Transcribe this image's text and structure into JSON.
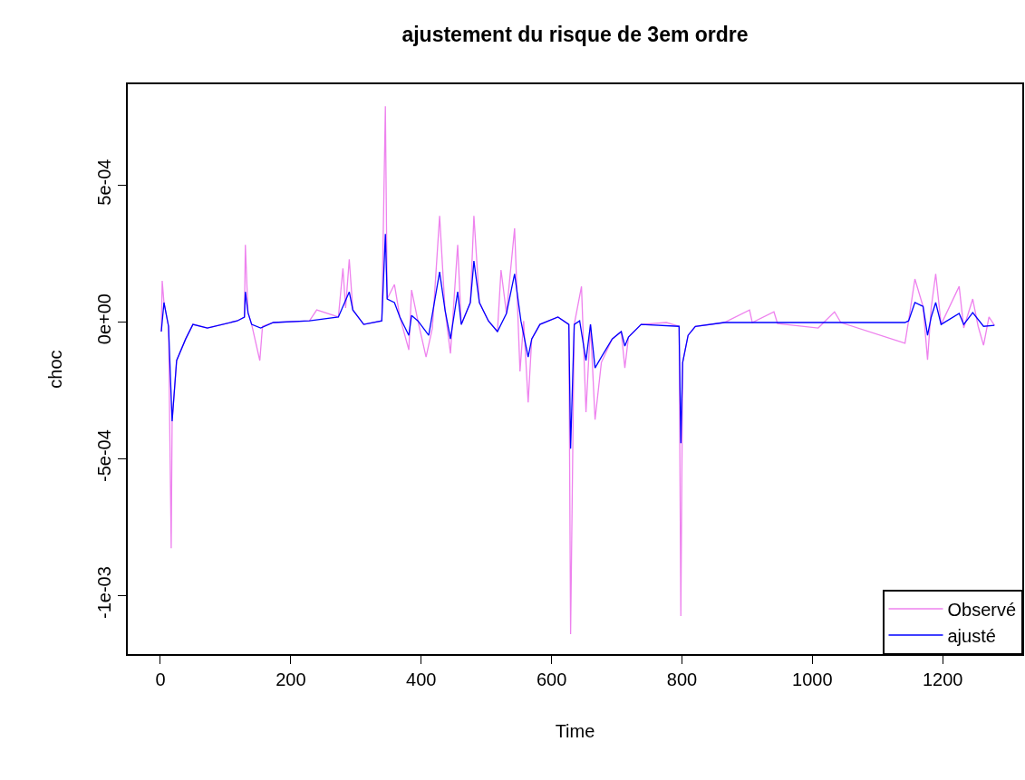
{
  "chart_data": {
    "type": "line",
    "title": "ajustement du risque de 3em ordre",
    "xlabel": "Time",
    "ylabel": "choc",
    "xlim": [
      -50,
      1322
    ],
    "ylim": [
      -0.001215,
      0.000868
    ],
    "xticks": [
      0,
      200,
      400,
      600,
      800,
      1000,
      1200
    ],
    "yticks": [
      {
        "value": 0.0005,
        "label": "5e-04"
      },
      {
        "value": 0,
        "label": "0e+00"
      },
      {
        "value": -0.0005,
        "label": "-5e-04"
      },
      {
        "value": -0.001,
        "label": "-1e-03"
      }
    ],
    "grid": false,
    "legend": "bottom right",
    "marker": "none",
    "line_style": "solid",
    "series": [
      {
        "name": "Observé",
        "color": "#ee82ee",
        "x": [
          1.4,
          2.8,
          5.5,
          12.5,
          16.6,
          18.0,
          24.9,
          38.8,
          49.9,
          72.1,
          117.8,
          128.9,
          130.3,
          134.4,
          140.0,
          152.5,
          156.6,
          173.3,
          228.7,
          239.8,
          273.0,
          280.0,
          284.1,
          289.7,
          295.2,
          311.9,
          339.6,
          345.1,
          347.9,
          359.0,
          367.3,
          381.1,
          385.3,
          395.0,
          407.5,
          417.2,
          428.3,
          436.6,
          444.9,
          456.0,
          461.5,
          475.4,
          480.9,
          489.3,
          503.1,
          517.0,
          522.5,
          530.8,
          543.3,
          551.6,
          557.2,
          564.1,
          569.6,
          582.1,
          609.8,
          626.5,
          629.2,
          634.8,
          645.9,
          652.8,
          659.7,
          666.7,
          676.4,
          693.0,
          706.9,
          712.4,
          718.0,
          737.4,
          776.2,
          795.6,
          798.3,
          801.1,
          809.4,
          820.5,
          864.9,
          903.7,
          907.8,
          941.1,
          946.6,
          1009.0,
          1034.0,
          1043.7,
          1142.1,
          1147.6,
          1157.3,
          1169.8,
          1176.7,
          1182.3,
          1189.2,
          1197.5,
          1225.2,
          1232.2,
          1246.0,
          1254.3,
          1262.6,
          1270.9,
          1279.3
        ],
        "values": [
          -3.6e-05,
          0.000149,
          7e-05,
          -1.7e-05,
          -0.000828,
          -0.000364,
          -0.000142,
          -6.3e-05,
          -1e-05,
          -2.3e-05,
          3e-06,
          1.7e-05,
          0.000281,
          3.3e-05,
          -1e-05,
          -0.000142,
          -1.7e-05,
          -3e-06,
          3e-06,
          4.3e-05,
          1.7e-05,
          0.000195,
          5e-05,
          0.000228,
          4.3e-05,
          -1e-05,
          3e-06,
          0.000788,
          8.3e-05,
          0.000136,
          1.7e-05,
          -0.000103,
          0.000116,
          3e-06,
          -0.000129,
          -2.3e-05,
          0.000387,
          4.3e-05,
          -0.000116,
          0.000281,
          -1e-05,
          7e-05,
          0.000387,
          7e-05,
          3e-06,
          -3.6e-05,
          0.000189,
          3e-05,
          0.000341,
          -0.000182,
          3e-06,
          -0.000295,
          -6.3e-05,
          -1e-05,
          1.7e-05,
          -1e-05,
          -0.001142,
          -1e-05,
          0.000129,
          -0.000331,
          -1e-05,
          -0.000358,
          -0.000149,
          -6.3e-05,
          -3.6e-05,
          -0.000169,
          -5.6e-05,
          -1e-05,
          -3e-06,
          -1.7e-05,
          -0.001076,
          -0.000149,
          -5e-05,
          -1.7e-05,
          -3e-06,
          4.3e-05,
          -3e-06,
          3.6e-05,
          -7e-06,
          -2.3e-05,
          3.6e-05,
          -3e-06,
          -7.9e-05,
          3e-06,
          0.000156,
          5.6e-05,
          -0.000139,
          5e-05,
          0.000175,
          -1e-05,
          0.000129,
          -2.3e-05,
          8.3e-05,
          -1.7e-05,
          -8.6e-05,
          1.7e-05,
          -1.3e-05
        ]
      },
      {
        "name": "ajusté",
        "color": "#0000ff",
        "x": [
          1.4,
          5.5,
          12.5,
          18.0,
          24.9,
          38.8,
          49.9,
          72.1,
          117.8,
          128.9,
          130.3,
          134.4,
          140.0,
          153.8,
          173.3,
          228.7,
          273.0,
          289.7,
          295.2,
          311.9,
          339.6,
          345.1,
          347.9,
          359.0,
          367.3,
          381.1,
          385.3,
          395.0,
          411.6,
          428.3,
          436.6,
          444.9,
          456.0,
          461.5,
          475.4,
          480.9,
          489.3,
          503.1,
          517.0,
          530.8,
          543.3,
          553.0,
          564.1,
          569.6,
          582.1,
          609.8,
          626.5,
          629.2,
          634.8,
          643.1,
          652.8,
          659.7,
          666.7,
          676.4,
          693.0,
          706.9,
          712.4,
          718.0,
          737.4,
          795.6,
          798.3,
          801.1,
          809.4,
          820.5,
          864.9,
          1009.0,
          1142.1,
          1147.6,
          1157.3,
          1169.8,
          1176.7,
          1182.3,
          1189.2,
          1197.5,
          1225.2,
          1232.2,
          1246.0,
          1262.6,
          1279.3
        ],
        "values": [
          -3.6e-05,
          7e-05,
          -1.7e-05,
          -0.000364,
          -0.000142,
          -6.3e-05,
          -1e-05,
          -2.3e-05,
          3e-06,
          1.7e-05,
          0.000109,
          3.3e-05,
          -1e-05,
          -2.3e-05,
          -3e-06,
          3e-06,
          1.7e-05,
          0.000109,
          4.3e-05,
          -1e-05,
          3e-06,
          0.000321,
          8.3e-05,
          7e-05,
          1.7e-05,
          -5e-05,
          2.3e-05,
          3e-06,
          -5e-05,
          0.000182,
          4.3e-05,
          -6.3e-05,
          0.000109,
          -1e-05,
          7e-05,
          0.000222,
          7e-05,
          3e-06,
          -3.6e-05,
          3e-05,
          0.000175,
          3e-06,
          -0.000129,
          -6.3e-05,
          -1e-05,
          1.7e-05,
          -1e-05,
          -0.000464,
          -1e-05,
          3e-06,
          -0.000142,
          -1e-05,
          -0.000169,
          -0.000129,
          -6.3e-05,
          -3.6e-05,
          -8.9e-05,
          -5.6e-05,
          -1e-05,
          -1.7e-05,
          -0.000444,
          -0.000149,
          -5e-05,
          -1.7e-05,
          -3e-06,
          -3e-06,
          -3e-06,
          3e-06,
          7e-05,
          5.6e-05,
          -5e-05,
          1.7e-05,
          7e-05,
          -1e-05,
          3e-05,
          -1e-05,
          3.3e-05,
          -1.7e-05,
          -1.3e-05
        ]
      }
    ]
  }
}
